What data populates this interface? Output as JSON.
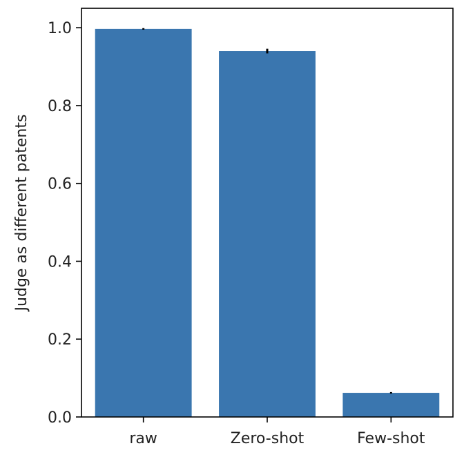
{
  "chart_data": {
    "type": "bar",
    "title": "",
    "xlabel": "",
    "ylabel": "Judge as different patents",
    "categories": [
      "raw",
      "Zero-shot",
      "Few-shot"
    ],
    "values": [
      0.997,
      0.94,
      0.062
    ],
    "errors": [
      0.002,
      0.006,
      0.002
    ],
    "ylim": [
      0.0,
      1.05
    ],
    "yticks": [
      "0.0",
      "0.2",
      "0.4",
      "0.6",
      "0.8",
      "1.0"
    ],
    "grid": false,
    "legend": "none",
    "colors": {
      "bar": "#3a76af",
      "error_bar": "#000000",
      "axis": "#000000",
      "text": "#222222"
    }
  }
}
